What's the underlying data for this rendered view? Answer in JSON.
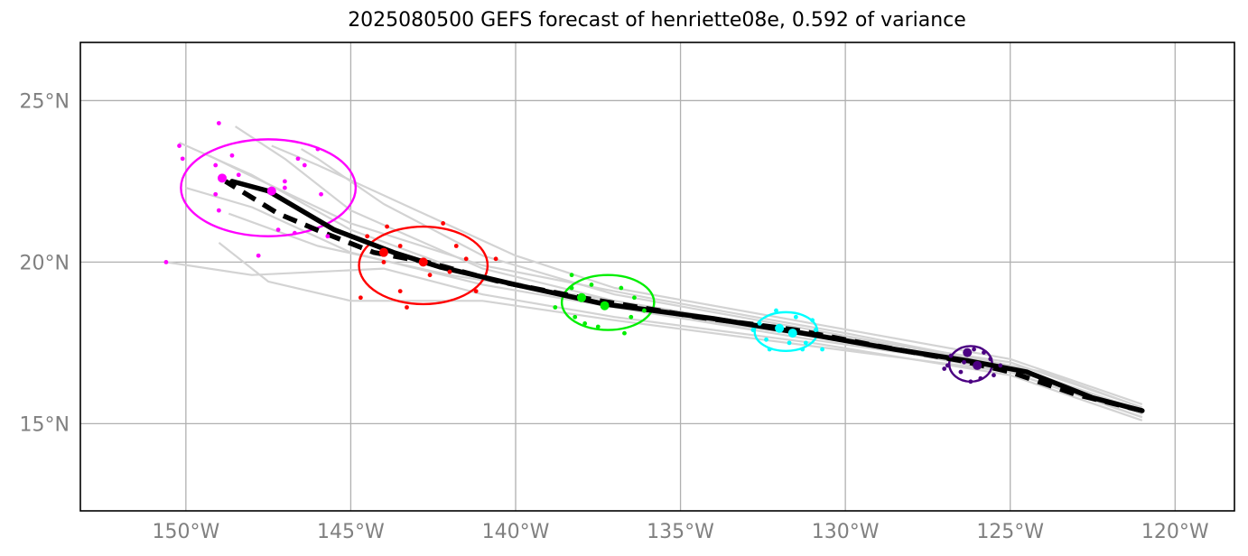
{
  "title": "2025080500 GEFS forecast of henriette08e, 0.592 of variance",
  "chart_data": {
    "type": "map",
    "title": "2025080500 GEFS forecast of henriette08e, 0.592 of variance",
    "xlim": [
      -153.2,
      -118.2
    ],
    "ylim": [
      12.3,
      26.8
    ],
    "grid": true,
    "x_ticks": [
      {
        "value": -150,
        "label": "150°W"
      },
      {
        "value": -145,
        "label": "145°W"
      },
      {
        "value": -140,
        "label": "140°W"
      },
      {
        "value": -135,
        "label": "135°W"
      },
      {
        "value": -130,
        "label": "130°W"
      },
      {
        "value": -125,
        "label": "125°W"
      },
      {
        "value": -120,
        "label": "120°W"
      }
    ],
    "y_ticks": [
      {
        "value": 15,
        "label": "15°N"
      },
      {
        "value": 20,
        "label": "20°N"
      },
      {
        "value": 25,
        "label": "25°N"
      }
    ],
    "colors": {
      "ensemble": "#d3d3d3",
      "mean_track": "#000000",
      "t1": "#4b0082",
      "t2": "#00ffff",
      "t3": "#00ee00",
      "t4": "#ff0000",
      "t5": "#ff00ff"
    },
    "mean_track": [
      [
        -121.0,
        15.4
      ],
      [
        -122.5,
        15.8
      ],
      [
        -124.5,
        16.6
      ],
      [
        -126.3,
        16.95
      ],
      [
        -128.5,
        17.3
      ],
      [
        -131.0,
        17.75
      ],
      [
        -134.0,
        18.25
      ],
      [
        -137.3,
        18.7
      ],
      [
        -140.0,
        19.3
      ],
      [
        -142.3,
        19.85
      ],
      [
        -143.7,
        20.3
      ],
      [
        -145.5,
        21.0
      ],
      [
        -147.5,
        22.2
      ],
      [
        -148.6,
        22.5
      ]
    ],
    "control_track": [
      [
        -121.0,
        15.4
      ],
      [
        -123.0,
        15.9
      ],
      [
        -125.0,
        16.6
      ],
      [
        -126.5,
        16.95
      ],
      [
        -129.0,
        17.4
      ],
      [
        -131.5,
        17.9
      ],
      [
        -134.5,
        18.3
      ],
      [
        -138.0,
        18.9
      ],
      [
        -140.5,
        19.4
      ],
      [
        -142.7,
        20.0
      ],
      [
        -144.3,
        20.3
      ],
      [
        -145.8,
        20.9
      ],
      [
        -147.2,
        21.5
      ],
      [
        -148.8,
        22.5
      ]
    ],
    "ensemble_tracks": [
      [
        [
          -121,
          15.3
        ],
        [
          -125,
          16.7
        ],
        [
          -131,
          17.6
        ],
        [
          -137,
          18.6
        ],
        [
          -141,
          19.5
        ],
        [
          -145,
          21.0
        ],
        [
          -148,
          22.7
        ],
        [
          -150.2,
          23.7
        ]
      ],
      [
        [
          -121,
          15.5
        ],
        [
          -125,
          16.9
        ],
        [
          -131,
          17.8
        ],
        [
          -137,
          18.8
        ],
        [
          -141,
          19.8
        ],
        [
          -145,
          21.6
        ],
        [
          -147,
          23.2
        ],
        [
          -148.5,
          24.2
        ]
      ],
      [
        [
          -121,
          15.1
        ],
        [
          -125,
          16.5
        ],
        [
          -131,
          17.5
        ],
        [
          -137,
          18.3
        ],
        [
          -141,
          19.0
        ],
        [
          -144,
          19.8
        ],
        [
          -148,
          19.6
        ],
        [
          -150.6,
          20.0
        ]
      ],
      [
        [
          -121,
          15.2
        ],
        [
          -125,
          16.6
        ],
        [
          -131,
          17.4
        ],
        [
          -137,
          18.2
        ],
        [
          -141,
          18.8
        ],
        [
          -145,
          18.8
        ],
        [
          -147.5,
          19.4
        ],
        [
          -149,
          20.6
        ]
      ],
      [
        [
          -121,
          15.4
        ],
        [
          -125,
          16.8
        ],
        [
          -131,
          17.9
        ],
        [
          -137,
          19.0
        ],
        [
          -141,
          20.2
        ],
        [
          -144,
          21.8
        ],
        [
          -146,
          23.2
        ],
        [
          -146.5,
          23.5
        ]
      ],
      [
        [
          -121,
          15.6
        ],
        [
          -125,
          17.0
        ],
        [
          -131,
          18.1
        ],
        [
          -137,
          19.2
        ],
        [
          -140,
          20.2
        ],
        [
          -143,
          21.6
        ],
        [
          -146,
          23.0
        ],
        [
          -147.4,
          23.6
        ]
      ],
      [
        [
          -121,
          15.3
        ],
        [
          -125,
          16.7
        ],
        [
          -131,
          17.7
        ],
        [
          -137,
          18.6
        ],
        [
          -141,
          19.3
        ],
        [
          -145,
          20.3
        ],
        [
          -148,
          21.7
        ],
        [
          -150,
          22.3
        ]
      ],
      [
        [
          -121,
          15.5
        ],
        [
          -124,
          16.6
        ],
        [
          -130,
          17.8
        ],
        [
          -136,
          18.9
        ],
        [
          -141,
          19.9
        ],
        [
          -145,
          21.2
        ],
        [
          -148.5,
          22.9
        ],
        [
          -149.3,
          23.3
        ]
      ],
      [
        [
          -121,
          15.2
        ],
        [
          -125,
          16.6
        ],
        [
          -131,
          17.7
        ],
        [
          -137,
          18.8
        ],
        [
          -142,
          19.6
        ],
        [
          -146,
          20.5
        ],
        [
          -148.7,
          21.5
        ]
      ]
    ],
    "forecast_times": [
      {
        "name": "t1",
        "color": "#4b0082",
        "center": [
          -126.2,
          16.85
        ],
        "rx_deg": 0.65,
        "ry_deg": 0.55,
        "big_points": [
          [
            -126.3,
            17.2
          ],
          [
            -126.0,
            16.8
          ]
        ],
        "points": [
          [
            -126.8,
            17.1
          ],
          [
            -126.5,
            16.6
          ],
          [
            -125.9,
            16.4
          ],
          [
            -125.6,
            17.0
          ],
          [
            -125.3,
            16.8
          ],
          [
            -126.1,
            17.3
          ],
          [
            -126.4,
            16.9
          ],
          [
            -125.8,
            17.2
          ],
          [
            -126.9,
            16.8
          ],
          [
            -127.0,
            16.7
          ],
          [
            -126.2,
            16.3
          ],
          [
            -125.5,
            16.5
          ]
        ]
      },
      {
        "name": "t2",
        "color": "#00ffff",
        "center": [
          -131.8,
          17.85
        ],
        "rx_deg": 0.95,
        "ry_deg": 0.6,
        "big_points": [
          [
            -132.0,
            17.95
          ],
          [
            -131.6,
            17.8
          ]
        ],
        "points": [
          [
            -132.8,
            17.9
          ],
          [
            -132.4,
            17.6
          ],
          [
            -131.2,
            17.5
          ],
          [
            -131.0,
            18.2
          ],
          [
            -131.3,
            17.3
          ],
          [
            -132.1,
            18.5
          ],
          [
            -131.5,
            18.3
          ],
          [
            -130.9,
            17.9
          ],
          [
            -132.3,
            17.3
          ],
          [
            -131.7,
            17.5
          ],
          [
            -130.7,
            17.3
          ],
          [
            -132.6,
            18.1
          ]
        ]
      },
      {
        "name": "t3",
        "color": "#00ee00",
        "center": [
          -137.2,
          18.75
        ],
        "rx_deg": 1.4,
        "ry_deg": 0.85,
        "big_points": [
          [
            -138.0,
            18.9
          ],
          [
            -137.3,
            18.65
          ]
        ],
        "points": [
          [
            -138.3,
            19.2
          ],
          [
            -137.7,
            19.3
          ],
          [
            -136.8,
            19.2
          ],
          [
            -136.4,
            18.9
          ],
          [
            -138.8,
            18.6
          ],
          [
            -138.2,
            18.3
          ],
          [
            -137.5,
            18.0
          ],
          [
            -136.7,
            17.8
          ],
          [
            -138.3,
            19.6
          ],
          [
            -136.1,
            18.5
          ],
          [
            -137.9,
            18.1
          ],
          [
            -136.5,
            18.3
          ]
        ]
      },
      {
        "name": "t4",
        "color": "#ff0000",
        "center": [
          -142.8,
          19.9
        ],
        "rx_deg": 1.95,
        "ry_deg": 1.2,
        "big_points": [
          [
            -144.0,
            20.3
          ],
          [
            -142.8,
            20.0
          ]
        ],
        "points": [
          [
            -144.5,
            20.8
          ],
          [
            -143.5,
            20.5
          ],
          [
            -142.2,
            21.2
          ],
          [
            -141.8,
            20.5
          ],
          [
            -140.6,
            20.1
          ],
          [
            -143.9,
            21.1
          ],
          [
            -142.0,
            19.7
          ],
          [
            -143.5,
            19.1
          ],
          [
            -141.2,
            19.1
          ],
          [
            -144.0,
            20.0
          ],
          [
            -143.3,
            18.6
          ],
          [
            -144.7,
            18.9
          ],
          [
            -142.6,
            19.6
          ],
          [
            -141.5,
            20.1
          ]
        ]
      },
      {
        "name": "t5",
        "color": "#ff00ff",
        "center": [
          -147.5,
          22.3
        ],
        "rx_deg": 2.65,
        "ry_deg": 1.5,
        "big_points": [
          [
            -148.9,
            22.6
          ],
          [
            -147.4,
            22.2
          ]
        ],
        "points": [
          [
            -150.1,
            23.2
          ],
          [
            -149.0,
            24.3
          ],
          [
            -149.1,
            23.0
          ],
          [
            -148.6,
            23.3
          ],
          [
            -148.4,
            22.7
          ],
          [
            -147.0,
            22.3
          ],
          [
            -146.6,
            23.2
          ],
          [
            -146.0,
            23.5
          ],
          [
            -145.9,
            22.1
          ],
          [
            -149.0,
            21.6
          ],
          [
            -149.1,
            22.1
          ],
          [
            -147.2,
            21.0
          ],
          [
            -146.7,
            20.9
          ],
          [
            -145.7,
            20.8
          ],
          [
            -147.8,
            20.2
          ],
          [
            -150.2,
            23.6
          ],
          [
            -147.0,
            22.5
          ],
          [
            -146.4,
            23.0
          ],
          [
            -150.6,
            20.0
          ]
        ]
      }
    ]
  }
}
